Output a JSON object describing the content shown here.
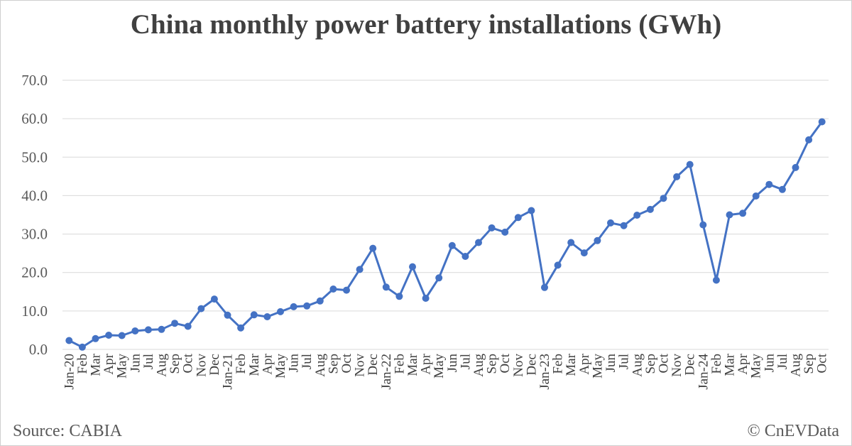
{
  "chart_data": {
    "type": "line",
    "title": "China monthly power battery installations (GWh)",
    "xlabel": "",
    "ylabel": "",
    "ylim": [
      0,
      70
    ],
    "yticks": [
      "0.0",
      "10.0",
      "20.0",
      "30.0",
      "40.0",
      "50.0",
      "60.0",
      "70.0"
    ],
    "grid": true,
    "color": "#4472C4",
    "categories": [
      "Jan-20",
      "Feb",
      "Mar",
      "Apr",
      "May",
      "Jun",
      "Jul",
      "Aug",
      "Sep",
      "Oct",
      "Nov",
      "Dec",
      "Jan-21",
      "Feb",
      "Mar",
      "Apr",
      "May",
      "Jun",
      "Jul",
      "Aug",
      "Sep",
      "Oct",
      "Nov",
      "Dec",
      "Jan-22",
      "Feb",
      "Mar",
      "Apr",
      "May",
      "Jun",
      "Jul",
      "Aug",
      "Sep",
      "Oct",
      "Nov",
      "Dec",
      "Jan-23",
      "Feb",
      "Mar",
      "Apr",
      "May",
      "Jun",
      "Jul",
      "Aug",
      "Sep",
      "Oct",
      "Nov",
      "Dec",
      "Jan-24",
      "Feb",
      "Mar",
      "Apr",
      "May",
      "Jun",
      "Jul",
      "Aug",
      "Sep",
      "Oct"
    ],
    "series": [
      {
        "values": [
          2.3,
          0.6,
          2.8,
          3.7,
          3.6,
          4.8,
          5.1,
          5.2,
          6.8,
          6.0,
          10.6,
          13.1,
          8.9,
          5.6,
          9.0,
          8.5,
          9.8,
          11.1,
          11.3,
          12.6,
          15.7,
          15.4,
          20.8,
          26.3,
          16.2,
          13.8,
          21.5,
          13.3,
          18.6,
          27.0,
          24.2,
          27.8,
          31.6,
          30.5,
          34.3,
          36.1,
          16.1,
          21.9,
          27.8,
          25.1,
          28.3,
          32.9,
          32.2,
          34.9,
          36.4,
          39.3,
          44.9,
          48.1,
          32.4,
          18.0,
          35.0,
          35.4,
          39.9,
          42.9,
          41.6,
          47.3,
          54.5,
          59.2
        ]
      }
    ]
  },
  "footer": {
    "source": "Source: CABIA",
    "credit": "© CnEVData"
  }
}
